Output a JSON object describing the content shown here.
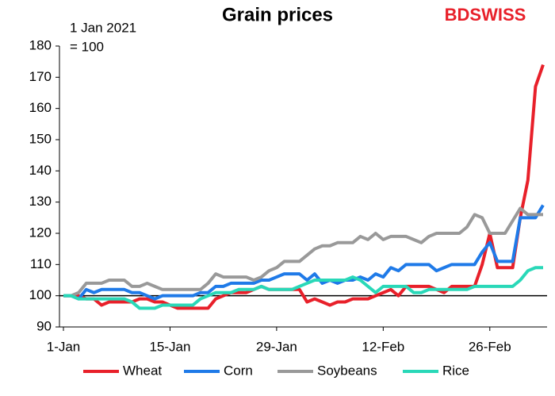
{
  "chart_data": {
    "type": "line",
    "title": "Grain prices",
    "subtitle": [
      "1 Jan 2021",
      "= 100"
    ],
    "logo": "BDSWISS",
    "categories": [
      "1-Jan",
      null,
      null,
      null,
      null,
      null,
      null,
      null,
      null,
      null,
      null,
      null,
      null,
      null,
      "15-Jan",
      null,
      null,
      null,
      null,
      null,
      null,
      null,
      null,
      null,
      null,
      null,
      null,
      null,
      "29-Jan",
      null,
      null,
      null,
      null,
      null,
      null,
      null,
      null,
      null,
      null,
      null,
      null,
      null,
      "12-Feb",
      null,
      null,
      null,
      null,
      null,
      null,
      null,
      null,
      null,
      null,
      null,
      null,
      null,
      "26-Feb",
      null,
      null,
      null,
      null,
      null,
      null,
      null
    ],
    "series": [
      {
        "name": "Wheat",
        "color": "#e8202a",
        "values": [
          100,
          100,
          100,
          99,
          99,
          97,
          98,
          98,
          98,
          98,
          99,
          99,
          98,
          98,
          97,
          96,
          96,
          96,
          96,
          96,
          99,
          100,
          101,
          101,
          101,
          102,
          103,
          102,
          102,
          102,
          102,
          102,
          98,
          99,
          98,
          97,
          98,
          98,
          99,
          99,
          99,
          100,
          101,
          102,
          100,
          103,
          103,
          103,
          103,
          102,
          101,
          103,
          103,
          103,
          103,
          110,
          120,
          109,
          109,
          109,
          125,
          137,
          167,
          174
        ]
      },
      {
        "name": "Corn",
        "color": "#1f7ae8",
        "values": [
          100,
          100,
          99,
          102,
          101,
          102,
          102,
          102,
          102,
          101,
          101,
          100,
          99,
          100,
          100,
          100,
          100,
          100,
          101,
          101,
          103,
          103,
          104,
          104,
          104,
          104,
          105,
          105,
          106,
          107,
          107,
          107,
          105,
          107,
          104,
          105,
          104,
          105,
          105,
          106,
          105,
          107,
          106,
          109,
          108,
          110,
          110,
          110,
          110,
          108,
          109,
          110,
          110,
          110,
          110,
          114,
          117,
          111,
          111,
          111,
          125,
          125,
          125,
          129
        ]
      },
      {
        "name": "Soybeans",
        "color": "#999999",
        "values": [
          100,
          100,
          101,
          104,
          104,
          104,
          105,
          105,
          105,
          103,
          103,
          104,
          103,
          102,
          102,
          102,
          102,
          102,
          102,
          104,
          107,
          106,
          106,
          106,
          106,
          105,
          106,
          108,
          109,
          111,
          111,
          111,
          113,
          115,
          116,
          116,
          117,
          117,
          117,
          119,
          118,
          120,
          118,
          119,
          119,
          119,
          118,
          117,
          119,
          120,
          120,
          120,
          120,
          122,
          126,
          125,
          120,
          120,
          120,
          124,
          128,
          126,
          126,
          126
        ]
      },
      {
        "name": "Rice",
        "color": "#29d8b8",
        "values": [
          100,
          100,
          99,
          99,
          99,
          99,
          99,
          99,
          99,
          98,
          96,
          96,
          96,
          97,
          97,
          97,
          97,
          97,
          99,
          100,
          101,
          101,
          101,
          102,
          102,
          102,
          103,
          102,
          102,
          102,
          102,
          103,
          104,
          105,
          105,
          105,
          105,
          105,
          106,
          105,
          103,
          101,
          103,
          103,
          103,
          103,
          101,
          101,
          102,
          102,
          102,
          102,
          102,
          102,
          103,
          103,
          103,
          103,
          103,
          103,
          105,
          108,
          109,
          109
        ]
      }
    ],
    "ylim": [
      90,
      180
    ],
    "yticks": [
      90,
      100,
      110,
      120,
      130,
      140,
      150,
      160,
      170,
      180
    ],
    "reference_line": 100,
    "legend": "bottom"
  }
}
